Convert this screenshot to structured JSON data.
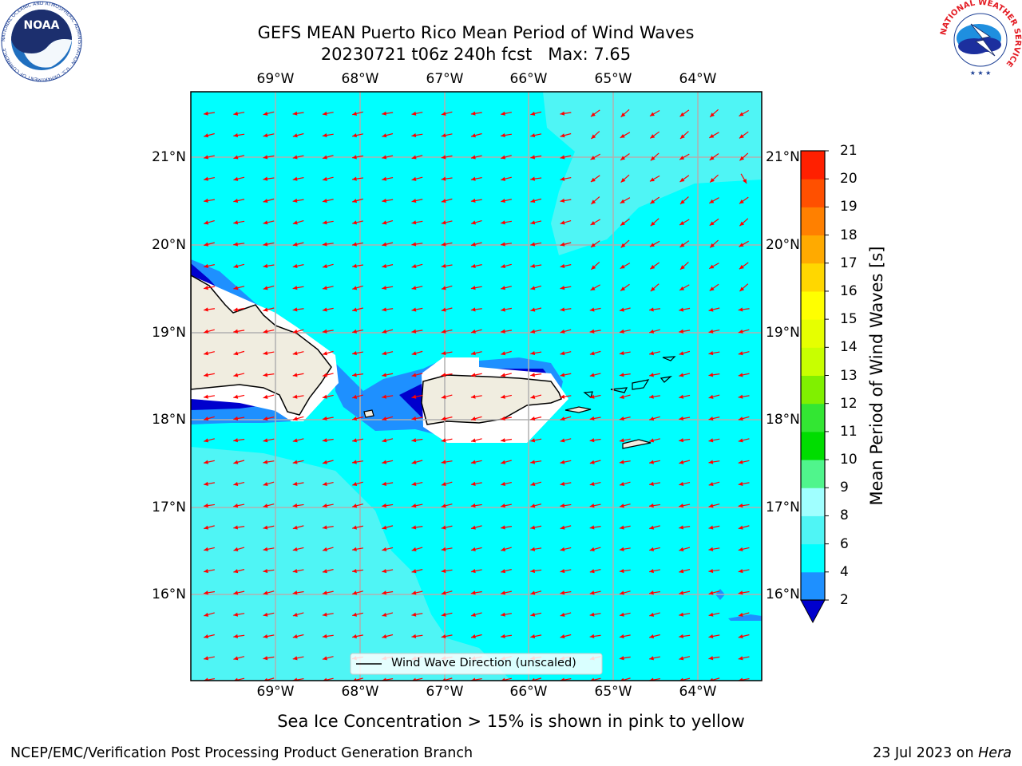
{
  "title_line1": "GEFS MEAN Puerto Rico Mean Period of Wind Waves",
  "title_line2": "20230721 t06z 240h fcst   Max: 7.65",
  "map": {
    "lon_labels": [
      "69°W",
      "68°W",
      "67°W",
      "66°W",
      "65°W",
      "64°W"
    ],
    "lat_labels": [
      "21°N",
      "20°N",
      "19°N",
      "18°N",
      "17°N",
      "16°N"
    ],
    "legend_label": "Wind Wave Direction (unscaled)"
  },
  "colorbar": {
    "label": "Mean Period of Wind Waves [s]",
    "ticks": [
      "2",
      "4",
      "6",
      "8",
      "9",
      "10",
      "11",
      "12",
      "13",
      "14",
      "15",
      "16",
      "17",
      "18",
      "19",
      "20",
      "21"
    ],
    "colors": [
      "#0000ff",
      "#1e90ff",
      "#00ffff",
      "#4ff5f5",
      "#a0ffff",
      "#50f58c",
      "#00dd00",
      "#33e633",
      "#80f000",
      "#c8ff00",
      "#e6ff00",
      "#ffff00",
      "#ffd700",
      "#ffaa00",
      "#ff8000",
      "#ff5000",
      "#ff2000",
      "#ff0000"
    ],
    "under_color": "#0000cd"
  },
  "colors": {
    "ocean_4_6": "#00ffff",
    "ocean_6_8": "#4ff5f5",
    "band_2_4": "#1e90ff",
    "band_lt2": "#0000cd",
    "land": "#f0ede0",
    "arrow": "#ff0000"
  },
  "note": "Sea Ice Concentration > 15% is shown in pink to yellow",
  "footer_left": "NCEP/EMC/Verification Post Processing Product Generation Branch",
  "footer_right_prefix": "23 Jul 2023 on ",
  "footer_right_host": "Hera",
  "logos": {
    "noaa_text": "NOAA",
    "noaa_ring": "NATIONAL OCEANIC AND ATMOSPHERIC ADMINISTRATION · U.S. DEPARTMENT OF COMMERCE",
    "nws_ring": "NATIONAL WEATHER SERVICE"
  }
}
